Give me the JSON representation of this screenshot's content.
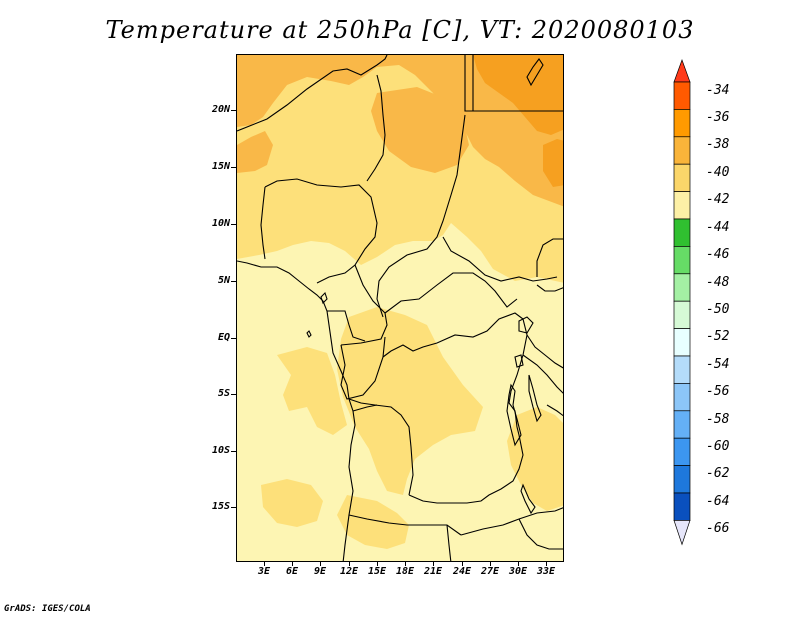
{
  "title": "Temperature at 250hPa [C], VT: 2020080103",
  "footer": "GrADS: IGES/COLA",
  "lat_labels": [
    "20N",
    "15N",
    "10N",
    "5N",
    "EQ",
    "5S",
    "10S",
    "15S"
  ],
  "lon_labels": [
    "3E",
    "6E",
    "9E",
    "12E",
    "15E",
    "18E",
    "21E",
    "24E",
    "27E",
    "30E",
    "33E"
  ],
  "colorbar": {
    "labels": [
      "-34",
      "-36",
      "-38",
      "-40",
      "-42",
      "-44",
      "-46",
      "-48",
      "-50",
      "-52",
      "-54",
      "-56",
      "-58",
      "-60",
      "-62",
      "-64",
      "-66"
    ],
    "colors": [
      "#ff5a00",
      "#ff9a00",
      "#f9b43a",
      "#fbd66a",
      "#fdf0a6",
      "#30c030",
      "#66dc66",
      "#a4f0a4",
      "#d6fad6",
      "#e8ffff",
      "#b4dcfa",
      "#8cc6f8",
      "#64b0f6",
      "#3c96f0",
      "#1e78dc",
      "#0a50be",
      "#0a2896"
    ],
    "top_arrow_color": "#ff3a1a",
    "bottom_arrow_color": "#e6e6fa"
  },
  "map_colors": {
    "t_m42": "#fdf5b3",
    "t_m41": "#fde07a",
    "t_m39": "#f9b848",
    "t_m37": "#f6a020"
  }
}
